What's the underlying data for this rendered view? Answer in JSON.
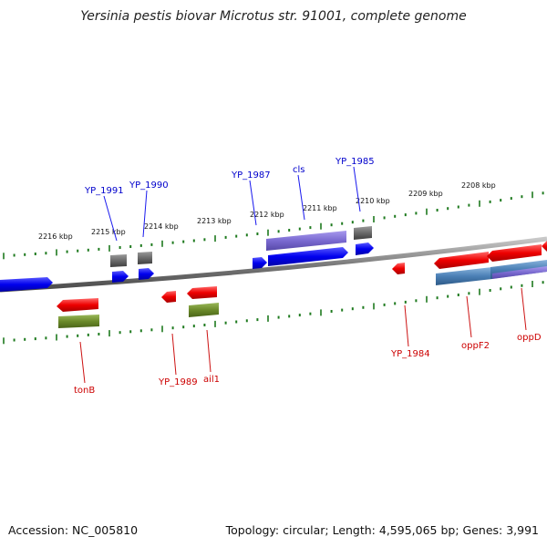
{
  "title": "Yersinia pestis biovar Microtus str. 91001, complete genome",
  "footer": {
    "accession": "Accession: NC_005810",
    "summary": "Topology: circular; Length: 4,595,065 bp; Genes: 3,991"
  },
  "colors": {
    "backbone": "#8a8a8a",
    "tick": "#1e7a1e",
    "forward_gene": "#0000ee",
    "reverse_gene": "#ee0000",
    "forward_label": "#0000cc",
    "reverse_label": "#cc0000",
    "cds_purple": "#7a6ad0",
    "cds_gray": "#6a6a6a",
    "cds_olive": "#6b8a2a",
    "cds_steel": "#4a7fb5"
  },
  "scale": {
    "ticks_kbp": [
      "2216 kbp",
      "2215 kbp",
      "2214 kbp",
      "2213 kbp",
      "2212 kbp",
      "2211 kbp",
      "2210 kbp",
      "2209 kbp",
      "2208 kbp"
    ]
  },
  "genes_forward": [
    {
      "name": "YP_1991"
    },
    {
      "name": "YP_1990"
    },
    {
      "name": "YP_1987"
    },
    {
      "name": "cls"
    },
    {
      "name": "YP_1985"
    }
  ],
  "genes_reverse": [
    {
      "name": "tonB"
    },
    {
      "name": "YP_1989"
    },
    {
      "name": "ail1"
    },
    {
      "name": "YP_1984"
    },
    {
      "name": "oppF2"
    },
    {
      "name": "oppD"
    }
  ]
}
